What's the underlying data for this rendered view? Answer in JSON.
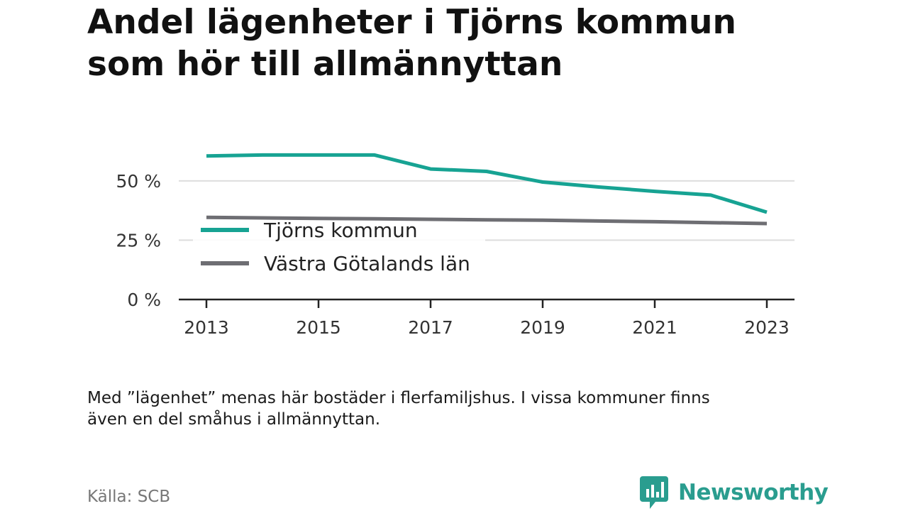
{
  "title": [
    "Andel lägenheter i Tjörns kommun",
    "som hör till allmännyttan"
  ],
  "chart_data": {
    "type": "line",
    "x": [
      2013,
      2014,
      2015,
      2016,
      2017,
      2018,
      2019,
      2020,
      2021,
      2022,
      2023
    ],
    "series": [
      {
        "name": "Tjörns kommun",
        "color": "#17a393",
        "values": [
          60.5,
          60.9,
          60.9,
          60.9,
          55.0,
          54.0,
          49.5,
          47.4,
          45.6,
          44.0,
          36.8
        ]
      },
      {
        "name": "Västra Götalands län",
        "color": "#6e6e73",
        "values": [
          34.6,
          34.4,
          34.2,
          34.0,
          33.8,
          33.6,
          33.4,
          33.1,
          32.8,
          32.4,
          32.0
        ]
      }
    ],
    "yticks": [
      0,
      25,
      50
    ],
    "ytick_labels": [
      "0 %",
      "25 %",
      "50 %"
    ],
    "xticks": [
      2013,
      2015,
      2017,
      2019,
      2021,
      2023
    ],
    "xtick_labels": [
      "2013",
      "2015",
      "2017",
      "2019",
      "2021",
      "2023"
    ],
    "xlim": [
      2013,
      2023
    ],
    "ylim": [
      0,
      70
    ],
    "grid": "horizontal",
    "legend": "bottom-left",
    "xlabel": "",
    "ylabel": ""
  },
  "footnote": [
    "Med ”lägenhet” menas här bostäder i flerfamiljshus. I vissa kommuner finns",
    "även en del småhus i allmännyttan."
  ],
  "source": "Källa: SCB",
  "logo": {
    "icon": "newsworthy-logo-icon",
    "text": "Newsworthy",
    "color": "#2a9d8f"
  }
}
